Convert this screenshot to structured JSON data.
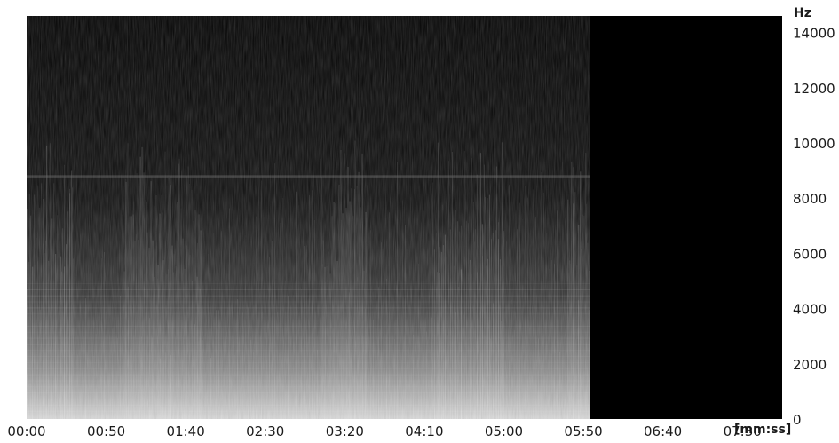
{
  "chart_data": {
    "type": "heatmap",
    "title": "",
    "x_unit_label": "[mm:ss]",
    "y_unit_label": "Hz",
    "x_ticks": [
      "00:00",
      "00:50",
      "01:40",
      "02:30",
      "03:20",
      "04:10",
      "05:00",
      "05:50",
      "06:40",
      "07:30"
    ],
    "x_tick_seconds": [
      0,
      50,
      100,
      150,
      200,
      250,
      300,
      350,
      400,
      450
    ],
    "x_range_seconds": [
      0,
      475
    ],
    "audio_end_seconds": 354,
    "y_ticks": [
      0,
      2000,
      4000,
      6000,
      8000,
      10000,
      12000,
      14000
    ],
    "y_range_hz": [
      0,
      14600
    ],
    "steady_tone_hz": 8800,
    "loud_regions_seconds": [
      [
        0,
        30
      ],
      [
        60,
        110
      ],
      [
        185,
        215
      ],
      [
        255,
        300
      ],
      [
        340,
        354
      ]
    ],
    "colormap": [
      "#000000",
      "#ffffff"
    ],
    "grid": false,
    "legend": "none"
  }
}
